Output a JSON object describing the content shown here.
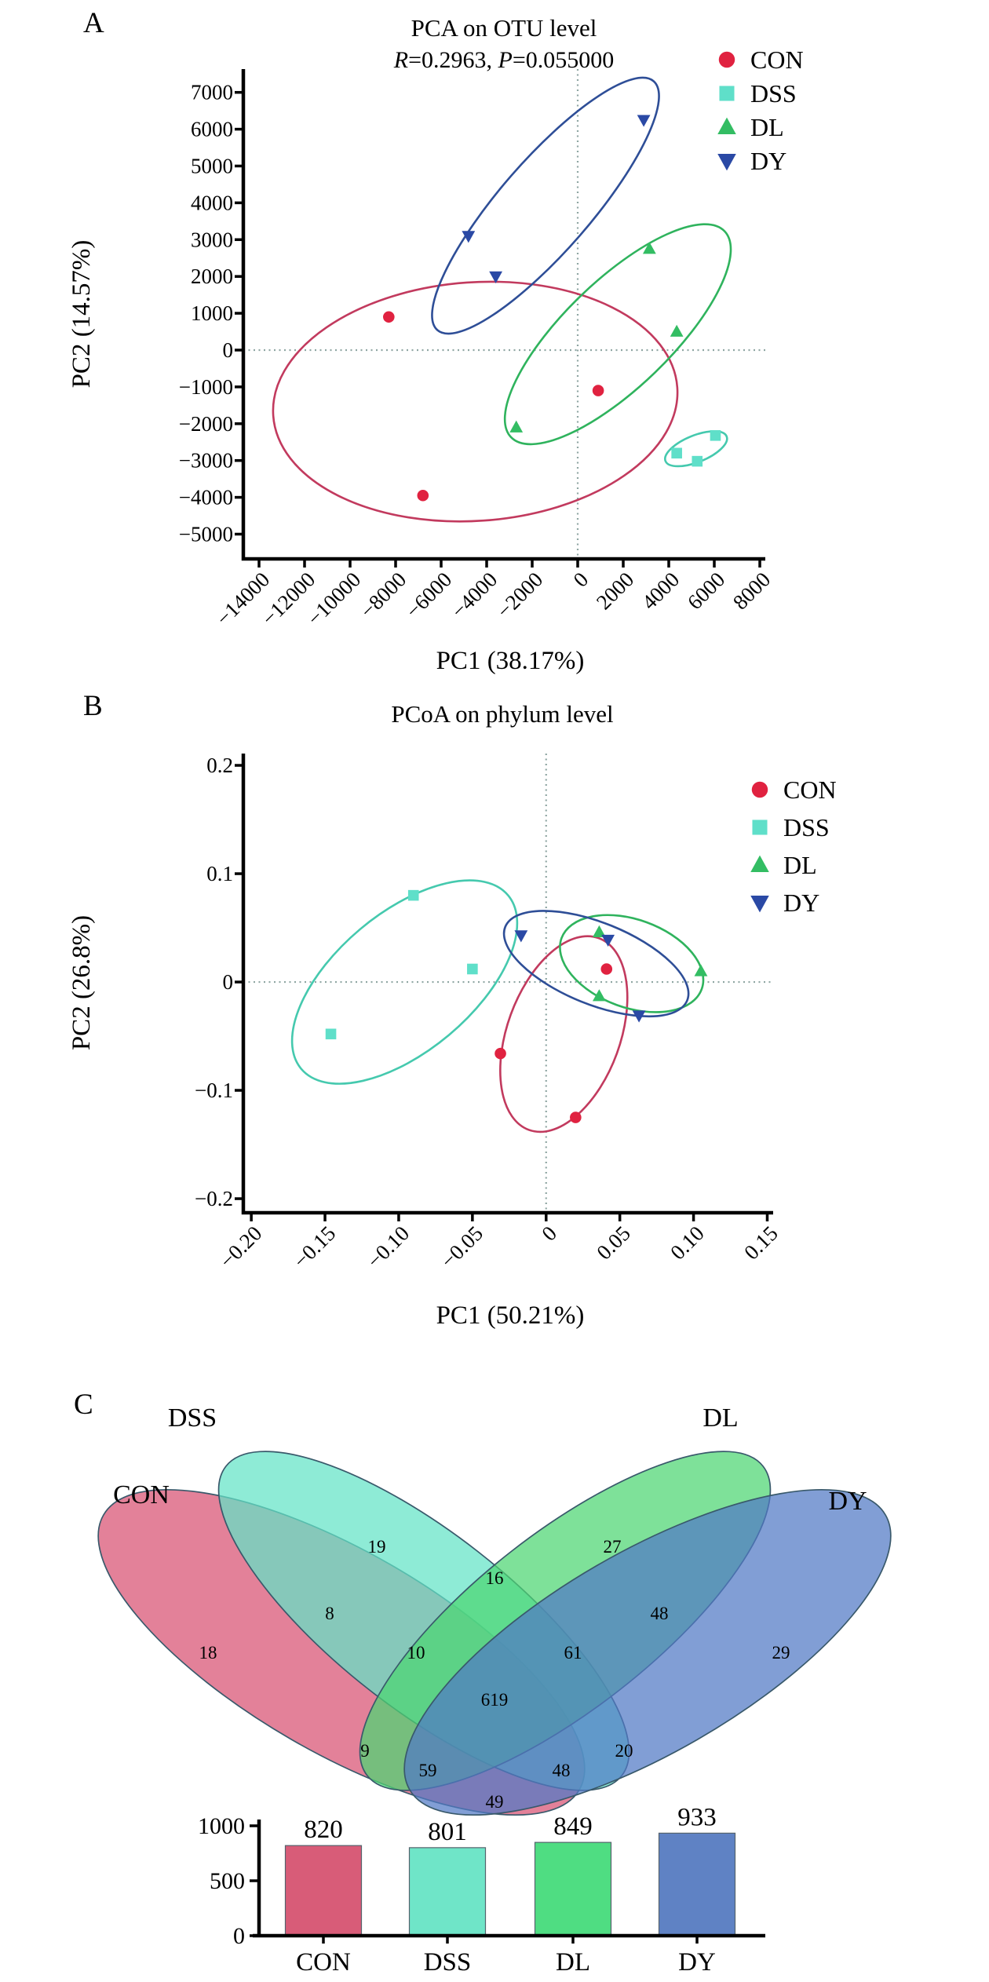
{
  "panels": {
    "a": {
      "label": "A"
    },
    "b": {
      "label": "B"
    },
    "c": {
      "label": "C"
    }
  },
  "chart_data": [
    {
      "id": "pca",
      "type": "scatter",
      "title": "PCA on OTU level",
      "subtitle_parts": [
        {
          "t": "R",
          "i": true
        },
        {
          "t": "=0.2963, ",
          "i": false
        },
        {
          "t": "P",
          "i": true
        },
        {
          "t": "=0.055000",
          "i": false
        }
      ],
      "xlabel": "PC1 (38.17%)",
      "ylabel": "PC2 (14.57%)",
      "xlim": [
        -14690,
        8241
      ],
      "ylim": [
        -5672,
        7633
      ],
      "grid": false,
      "zero_lines": true,
      "legend_position": "top-right",
      "xticks": [
        -14000,
        -12000,
        -10000,
        -8000,
        -6000,
        -4000,
        -2000,
        0,
        2000,
        4000,
        6000,
        8000
      ],
      "xtick_labels": [
        "−14000",
        "−12000",
        "−10000",
        "−8000",
        "−6000",
        "−4000",
        "−2000",
        "0",
        "2000",
        "4000",
        "6000",
        "8000"
      ],
      "yticks": [
        7000,
        6000,
        5000,
        4000,
        3000,
        2000,
        1000,
        0,
        -1000,
        -2000,
        -3000,
        -4000,
        -5000
      ],
      "ytick_labels": [
        "7000",
        "6000",
        "5000",
        "4000",
        "3000",
        "2000",
        "1000",
        "0",
        "−1000",
        "−2000",
        "−3000",
        "−4000",
        "−5000"
      ],
      "series": [
        {
          "name": "CON",
          "marker": "circle",
          "color": "#e02240",
          "ellipse_color": "#c23a5e",
          "points": [
            [
              -8300,
              900
            ],
            [
              900,
              -1100
            ],
            [
              -6800,
              -3950
            ]
          ],
          "ellipse": {
            "cx": -4500,
            "cy": -1400,
            "a": 258,
            "b": 152,
            "rot": -4
          }
        },
        {
          "name": "DSS",
          "marker": "square",
          "color": "#5fdfc9",
          "ellipse_color": "#45c9ae",
          "points": [
            [
              4350,
              -2800
            ],
            [
              5250,
              -3020
            ],
            [
              6050,
              -2320
            ]
          ],
          "ellipse": {
            "cx": 5200,
            "cy": -2680,
            "a": 42,
            "b": 17,
            "rot": -22
          }
        },
        {
          "name": "DL",
          "marker": "triangle-up",
          "color": "#33bd63",
          "ellipse_color": "#2fb35d",
          "points": [
            [
              -2700,
              -2100
            ],
            [
              3150,
              2750
            ],
            [
              4350,
              500
            ]
          ],
          "ellipse": {
            "cx": 1760,
            "cy": 430,
            "a": 189,
            "b": 68,
            "rot": -44
          }
        },
        {
          "name": "DY",
          "marker": "triangle-down",
          "color": "#2a49a5",
          "ellipse_color": "#2e4e97",
          "points": [
            [
              -4800,
              3100
            ],
            [
              -3600,
              2000
            ],
            [
              2900,
              6250
            ]
          ],
          "ellipse": {
            "cx": -1414,
            "cy": 3923,
            "a": 210,
            "b": 58,
            "rot": -49
          }
        }
      ]
    },
    {
      "id": "pcoa",
      "type": "scatter",
      "title": "PCoA on phylum level",
      "xlabel": "PC1 (50.21%)",
      "ylabel": "PC2 (26.8%)",
      "xlim": [
        -0.2054,
        0.154
      ],
      "ylim": [
        -0.213,
        0.2109
      ],
      "grid": false,
      "zero_lines": true,
      "legend_position": "top-right",
      "xticks": [
        -0.2,
        -0.15,
        -0.1,
        -0.05,
        0,
        0.05,
        0.1,
        0.15
      ],
      "xtick_labels": [
        "−0.20",
        "−0.15",
        "−0.10",
        "−0.05",
        "0",
        "0.05",
        "0.10",
        "0.15"
      ],
      "yticks": [
        0.2,
        0.1,
        0,
        -0.1,
        -0.2
      ],
      "ytick_labels": [
        "0.2",
        "0.1",
        "0",
        "−0.1",
        "−0.2"
      ],
      "series": [
        {
          "name": "CON",
          "marker": "circle",
          "color": "#e02240",
          "ellipse_color": "#c23a5e",
          "points": [
            [
              0.041,
              0.012
            ],
            [
              -0.031,
              -0.066
            ],
            [
              0.02,
              -0.125
            ]
          ],
          "ellipse": {
            "cx": 0.012,
            "cy": -0.048,
            "a": 130,
            "b": 72,
            "rot": -70
          }
        },
        {
          "name": "DSS",
          "marker": "square",
          "color": "#5fdfc9",
          "ellipse_color": "#45c9ae",
          "points": [
            [
              -0.09,
              0.08
            ],
            [
              -0.05,
              0.012
            ],
            [
              -0.146,
              -0.048
            ]
          ],
          "ellipse": {
            "cx": -0.096,
            "cy": 0.0,
            "a": 172,
            "b": 88,
            "rot": -40
          }
        },
        {
          "name": "DL",
          "marker": "triangle-up",
          "color": "#33bd63",
          "ellipse_color": "#2fb35d",
          "points": [
            [
              0.036,
              0.046
            ],
            [
              0.036,
              -0.013
            ],
            [
              0.105,
              0.01
            ]
          ],
          "ellipse": {
            "cx": 0.058,
            "cy": 0.017,
            "a": 95,
            "b": 56,
            "rot": 20
          }
        },
        {
          "name": "DY",
          "marker": "triangle-down",
          "color": "#2a49a5",
          "ellipse_color": "#2e4e97",
          "points": [
            [
              -0.017,
              0.043
            ],
            [
              0.042,
              0.039
            ],
            [
              0.063,
              -0.031
            ]
          ],
          "ellipse": {
            "cx": 0.034,
            "cy": 0.017,
            "a": 125,
            "b": 52,
            "rot": 22
          }
        }
      ]
    },
    {
      "id": "venn",
      "type": "venn",
      "sets": [
        {
          "name": "CON",
          "color": "#d85072"
        },
        {
          "name": "DSS",
          "color": "#63e3c6"
        },
        {
          "name": "DL",
          "color": "#4cd671"
        },
        {
          "name": "DY",
          "color": "#5179c5"
        }
      ],
      "regions": [
        {
          "name": "CON only",
          "value": 18
        },
        {
          "name": "DSS only",
          "value": 19
        },
        {
          "name": "DL only",
          "value": 27
        },
        {
          "name": "DY only",
          "value": 29
        },
        {
          "name": "CON∩DSS",
          "value": 8
        },
        {
          "name": "DSS∩DL",
          "value": 16
        },
        {
          "name": "DL∩DY",
          "value": 48
        },
        {
          "name": "CON∩DL",
          "value": 9
        },
        {
          "name": "DSS∩DY",
          "value": 20
        },
        {
          "name": "CON∩DY",
          "value": 49
        },
        {
          "name": "CON∩DSS∩DL",
          "value": 10
        },
        {
          "name": "DSS∩DL∩DY",
          "value": 61
        },
        {
          "name": "CON∩DL∩DY",
          "value": 59
        },
        {
          "name": "CON∩DSS∩DY",
          "value": 48
        },
        {
          "name": "CON∩DSS∩DL∩DY",
          "value": 619
        }
      ]
    },
    {
      "id": "otu-counts",
      "type": "bar",
      "categories": [
        "CON",
        "DSS",
        "DL",
        "DY"
      ],
      "values": [
        820,
        801,
        849,
        933
      ],
      "colors": [
        "#d85c78",
        "#6fe5c8",
        "#4fdd82",
        "#5f82c4"
      ],
      "yticks": [
        0,
        500,
        1000
      ],
      "ylim": [
        0,
        1070
      ]
    }
  ]
}
